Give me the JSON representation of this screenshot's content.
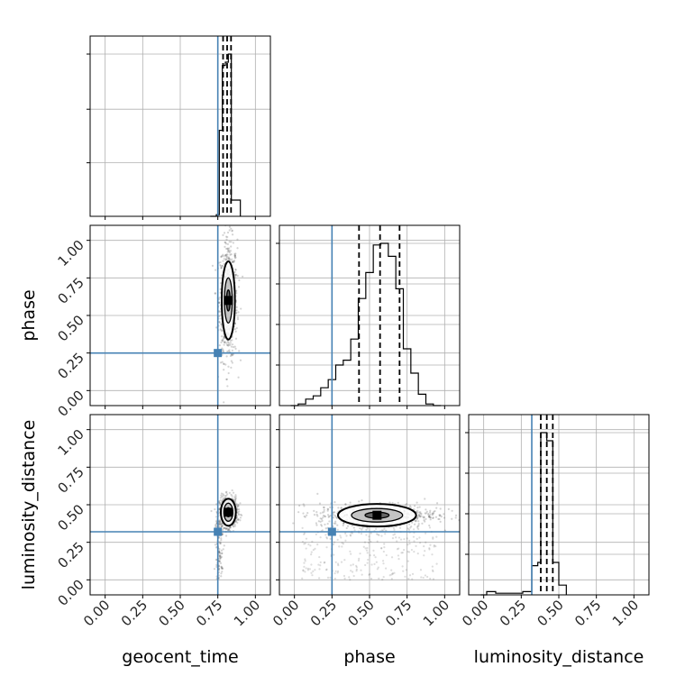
{
  "chart_data": {
    "type": "corner",
    "parameters": [
      "geocent_time",
      "phase",
      "luminosity_distance"
    ],
    "axis_range": [
      -0.1,
      1.1
    ],
    "tick_labels": [
      "0.00",
      "0.25",
      "0.50",
      "0.75",
      "1.00"
    ],
    "ticks": [
      0,
      0.25,
      0.5,
      0.75,
      1.0
    ],
    "grid": true,
    "colors": {
      "truth": "#4682b4",
      "hist": "#000000",
      "quantile": "#000000",
      "points": "#555555",
      "grid": "#b0b0b0",
      "frame": "#000000"
    },
    "truths": {
      "geocent_time": 0.75,
      "phase": 0.25,
      "luminosity_distance": 0.32
    },
    "histograms": {
      "geocent_time": {
        "bin_edges": [
          0.7,
          0.74,
          0.76,
          0.78,
          0.8,
          0.82,
          0.84,
          0.86,
          0.9
        ],
        "counts": [
          0.0,
          0.01,
          0.53,
          0.93,
          0.95,
          1.0,
          0.1,
          0.1
        ],
        "quantiles": [
          0.785,
          0.812,
          0.838
        ]
      },
      "phase": {
        "bin_edges": [
          -0.025,
          0.025,
          0.075,
          0.125,
          0.175,
          0.225,
          0.275,
          0.325,
          0.375,
          0.425,
          0.475,
          0.525,
          0.575,
          0.625,
          0.675,
          0.725,
          0.775,
          0.825,
          0.875,
          0.925,
          0.975
        ],
        "counts": [
          0.0,
          0.01,
          0.04,
          0.06,
          0.11,
          0.16,
          0.25,
          0.28,
          0.41,
          0.66,
          0.82,
          0.99,
          1.0,
          0.92,
          0.72,
          0.35,
          0.2,
          0.07,
          0.01,
          0.0
        ],
        "quantiles": [
          0.43,
          0.57,
          0.7
        ]
      },
      "luminosity_distance": {
        "bin_edges": [
          -0.02,
          0.02,
          0.08,
          0.14,
          0.2,
          0.26,
          0.32,
          0.36,
          0.38,
          0.42,
          0.46,
          0.5,
          0.55
        ],
        "counts": [
          0.0,
          0.02,
          0.01,
          0.01,
          0.01,
          0.02,
          0.18,
          0.2,
          1.0,
          0.95,
          0.2,
          0.06
        ],
        "quantiles": [
          0.38,
          0.42,
          0.46
        ]
      }
    },
    "scatter_2d": {
      "phase_vs_geocent_time": {
        "x": "geocent_time",
        "y": "phase",
        "center": [
          0.82,
          0.6
        ],
        "spread": [
          0.03,
          0.2
        ],
        "contour_sizes": [
          [
            0.012,
            0.07
          ],
          [
            0.026,
            0.15
          ],
          [
            0.044,
            0.26
          ]
        ]
      },
      "luminosity_distance_vs_geocent_time": {
        "x": "geocent_time",
        "y": "luminosity_distance",
        "center": [
          0.82,
          0.45
        ],
        "spread": [
          0.03,
          0.05
        ],
        "contour_sizes": [
          [
            0.015,
            0.03
          ],
          [
            0.03,
            0.06
          ],
          [
            0.05,
            0.09
          ]
        ]
      },
      "luminosity_distance_vs_phase": {
        "x": "phase",
        "y": "luminosity_distance",
        "center": [
          0.55,
          0.43
        ],
        "spread": [
          0.2,
          0.04
        ],
        "contour_sizes": [
          [
            0.08,
            0.02
          ],
          [
            0.17,
            0.045
          ],
          [
            0.26,
            0.075
          ]
        ]
      }
    }
  }
}
